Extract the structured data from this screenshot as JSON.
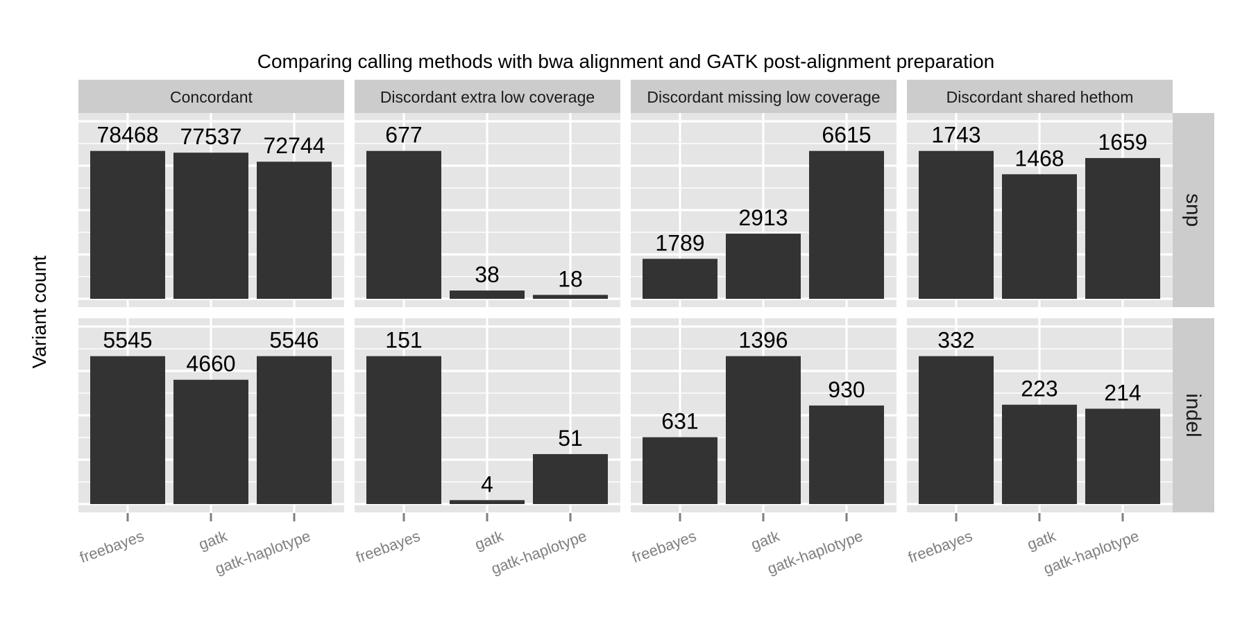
{
  "chart_data": {
    "type": "bar",
    "title": "Comparing calling methods with bwa alignment and GATK post-alignment preparation",
    "xlabel": "",
    "ylabel": "Variant count",
    "categories": [
      "freebayes",
      "gatk",
      "gatk-haplotype"
    ],
    "facet_columns": [
      "Concordant",
      "Discordant extra low coverage",
      "Discordant missing low coverage",
      "Discordant shared hethom"
    ],
    "facet_rows": [
      "snp",
      "indel"
    ],
    "panels": [
      {
        "row": "snp",
        "column": "Concordant",
        "values": [
          78468,
          77537,
          72744
        ]
      },
      {
        "row": "snp",
        "column": "Discordant extra low coverage",
        "values": [
          677,
          38,
          18
        ]
      },
      {
        "row": "snp",
        "column": "Discordant missing low coverage",
        "values": [
          1789,
          2913,
          6615
        ]
      },
      {
        "row": "snp",
        "column": "Discordant shared hethom",
        "values": [
          1743,
          1468,
          1659
        ]
      },
      {
        "row": "indel",
        "column": "Concordant",
        "values": [
          5545,
          4660,
          5546
        ]
      },
      {
        "row": "indel",
        "column": "Discordant extra low coverage",
        "values": [
          151,
          4,
          51
        ]
      },
      {
        "row": "indel",
        "column": "Discordant missing low coverage",
        "values": [
          631,
          1396,
          930
        ]
      },
      {
        "row": "indel",
        "column": "Discordant shared hethom",
        "values": [
          332,
          223,
          214
        ]
      }
    ],
    "scales": "free_y",
    "y_axis_tick_labels_shown": false,
    "grid": true,
    "colors": {
      "bar": "#333333",
      "panel_background": "#e5e5e5",
      "grid_line": "#ffffff",
      "strip_background": "#cccccc",
      "tick_label": "#7f7f7f"
    }
  }
}
